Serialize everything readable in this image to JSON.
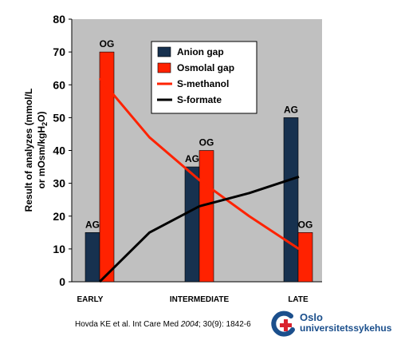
{
  "chart_data": {
    "type": "bar",
    "categories": [
      "EARLY",
      "INTERMEDIATE",
      "LATE"
    ],
    "ylim": [
      0,
      80
    ],
    "yticks": [
      0,
      10,
      20,
      30,
      40,
      50,
      60,
      70,
      80
    ],
    "ylabel_line1": "Result of analyzes (mmol/L",
    "ylabel_line2_pre": "or mOsm/kgH",
    "ylabel_line2_sub": "2",
    "ylabel_line2_post": "O)",
    "legend_position": "top-center",
    "series": [
      {
        "name": "Anion gap",
        "kind": "bar",
        "color": "#17314f",
        "values": [
          15,
          35,
          50
        ],
        "bar_labels": [
          "AG",
          "AG",
          "AG"
        ]
      },
      {
        "name": "Osmolal gap",
        "kind": "bar",
        "color": "#ff2200",
        "values": [
          70,
          40,
          15
        ],
        "bar_labels": [
          "OG",
          "OG",
          "OG"
        ]
      },
      {
        "name": "S-methanol",
        "kind": "line",
        "color": "#ff2200",
        "x": [
          0,
          0.5,
          1,
          1.5,
          2
        ],
        "values": [
          62,
          44,
          31,
          20,
          10
        ]
      },
      {
        "name": "S-formate",
        "kind": "line",
        "color": "#000000",
        "x": [
          0,
          0.5,
          1,
          1.5,
          2
        ],
        "values": [
          0,
          15,
          23,
          27,
          32
        ]
      }
    ]
  },
  "citation": {
    "before": "Hovda KE et al. Int Care Med ",
    "year": "2004",
    "after": "; 30(9): 1842-6"
  },
  "logo": {
    "line1": "Oslo",
    "line2": "universitetssykehus",
    "mark_color": "#1b4f8c",
    "cross_color": "#d9232e"
  }
}
